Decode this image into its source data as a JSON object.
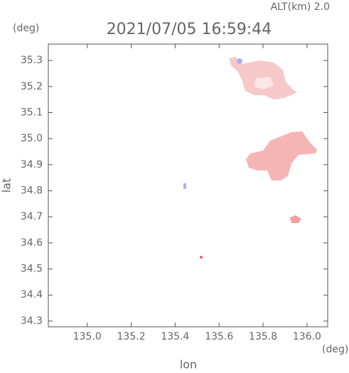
{
  "chart_data": {
    "type": "map",
    "title": "2021/07/05 16:59:44",
    "subtitle": "ALT(km) 2.0",
    "y_unit": "(deg)",
    "x_unit": "(deg)",
    "xlabel": "lon",
    "ylabel": "lat",
    "xlim": [
      134.823,
      136.094
    ],
    "ylim": [
      34.278,
      35.363
    ],
    "xticks": [
      {
        "value": 135,
        "label": "135.0"
      },
      135.2,
      135.4,
      135.6,
      135.8,
      {
        "value": 136,
        "label": "136.0"
      }
    ],
    "yticks": [
      34.3,
      34.4,
      34.5,
      34.6,
      34.7,
      34.8,
      34.9,
      {
        "value": 35,
        "label": "35.0"
      },
      35.1,
      35.2,
      35.3
    ]
  }
}
